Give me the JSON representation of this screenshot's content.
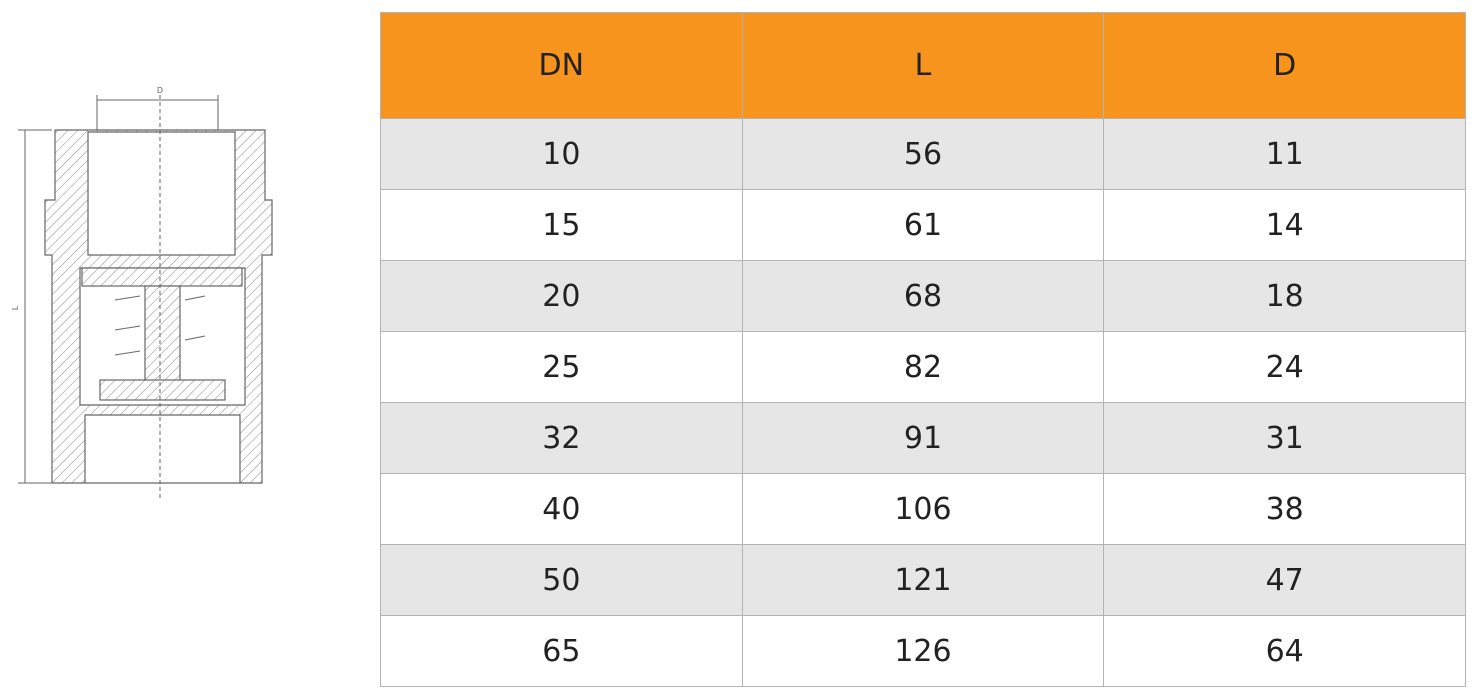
{
  "drawing": {
    "width_label": "D",
    "length_label": "L"
  },
  "table": {
    "header": [
      "DN",
      "L",
      "D"
    ],
    "rows": [
      [
        "10",
        "56",
        "11"
      ],
      [
        "15",
        "61",
        "14"
      ],
      [
        "20",
        "68",
        "18"
      ],
      [
        "25",
        "82",
        "24"
      ],
      [
        "32",
        "91",
        "31"
      ],
      [
        "40",
        "106",
        "38"
      ],
      [
        "50",
        "121",
        "47"
      ],
      [
        "65",
        "126",
        "64"
      ]
    ]
  }
}
